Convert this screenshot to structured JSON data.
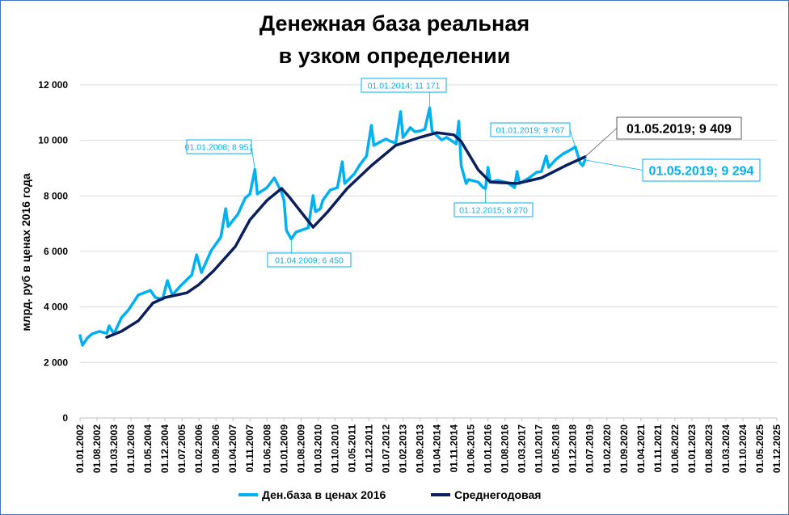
{
  "chart_data": {
    "type": "line",
    "title": [
      "Денежная база реальная",
      "в узком определении"
    ],
    "ylabel": "млрд. руб  в ценах 2016 года",
    "xlabel": "",
    "ylim": [
      0,
      12000
    ],
    "yticks": [
      0,
      2000,
      4000,
      6000,
      8000,
      10000,
      12000
    ],
    "ytick_labels": [
      "0",
      "2 000",
      "4 000",
      "6 000",
      "8 000",
      "10 000",
      "12 000"
    ],
    "xlim": [
      "2002-01",
      "2025-12"
    ],
    "xtick_labels": [
      "01.01.2002",
      "01.08.2002",
      "01.03.2003",
      "01.10.2003",
      "01.05.2004",
      "01.12.2004",
      "01.07.2005",
      "01.02.2006",
      "01.09.2006",
      "01.04.2007",
      "01.11.2007",
      "01.06.2008",
      "01.01.2009",
      "01.08.2009",
      "01.03.2010",
      "01.10.2010",
      "01.05.2011",
      "01.12.2011",
      "01.07.2012",
      "01.02.2013",
      "01.09.2013",
      "01.04.2014",
      "01.11.2014",
      "01.06.2015",
      "01.01.2016",
      "01.08.2016",
      "01.03.2017",
      "01.10.2017",
      "01.05.2018",
      "01.12.2018",
      "01.07.2019",
      "01.02.2020",
      "01.09.2020",
      "01.04.2021",
      "01.11.2021",
      "01.06.2022",
      "01.01.2023",
      "01.08.2023",
      "01.03.2024",
      "01.10.2024",
      "01.05.2025",
      "01.12.2025"
    ],
    "grid": "horizontal",
    "legend_position": "bottom",
    "series": [
      {
        "name": "Ден.база в ценах 2016",
        "color": "#00B0F0",
        "points": [
          [
            "2002-01",
            2970
          ],
          [
            "2002-02",
            2620
          ],
          [
            "2002-04",
            2880
          ],
          [
            "2002-06",
            3030
          ],
          [
            "2002-09",
            3120
          ],
          [
            "2002-12",
            3050
          ],
          [
            "2003-01",
            3320
          ],
          [
            "2003-03",
            3030
          ],
          [
            "2003-06",
            3610
          ],
          [
            "2003-09",
            3900
          ],
          [
            "2004-01",
            4430
          ],
          [
            "2004-06",
            4600
          ],
          [
            "2004-08",
            4340
          ],
          [
            "2004-11",
            4280
          ],
          [
            "2005-01",
            4950
          ],
          [
            "2005-03",
            4430
          ],
          [
            "2005-06",
            4720
          ],
          [
            "2005-10",
            5070
          ],
          [
            "2005-11",
            5150
          ],
          [
            "2006-01",
            5880
          ],
          [
            "2006-03",
            5240
          ],
          [
            "2006-07",
            6030
          ],
          [
            "2006-11",
            6520
          ],
          [
            "2007-01",
            7540
          ],
          [
            "2007-02",
            6900
          ],
          [
            "2007-06",
            7340
          ],
          [
            "2007-09",
            7920
          ],
          [
            "2007-11",
            8070
          ],
          [
            "2008-01",
            8951
          ],
          [
            "2008-02",
            8070
          ],
          [
            "2008-06",
            8300
          ],
          [
            "2008-09",
            8650
          ],
          [
            "2008-12",
            8130
          ],
          [
            "2009-01",
            7840
          ],
          [
            "2009-02",
            6760
          ],
          [
            "2009-04",
            6450
          ],
          [
            "2009-06",
            6700
          ],
          [
            "2009-10",
            6820
          ],
          [
            "2009-11",
            6850
          ],
          [
            "2010-01",
            8010
          ],
          [
            "2010-02",
            7430
          ],
          [
            "2010-04",
            7540
          ],
          [
            "2010-05",
            7840
          ],
          [
            "2010-08",
            8210
          ],
          [
            "2010-11",
            8300
          ],
          [
            "2011-01",
            9230
          ],
          [
            "2011-02",
            8450
          ],
          [
            "2011-06",
            8800
          ],
          [
            "2011-08",
            9090
          ],
          [
            "2011-11",
            9440
          ],
          [
            "2012-01",
            10540
          ],
          [
            "2012-02",
            9820
          ],
          [
            "2012-05",
            9960
          ],
          [
            "2012-07",
            10050
          ],
          [
            "2012-09",
            9960
          ],
          [
            "2012-11",
            9900
          ],
          [
            "2013-01",
            11040
          ],
          [
            "2013-02",
            10110
          ],
          [
            "2013-05",
            10460
          ],
          [
            "2013-07",
            10310
          ],
          [
            "2013-09",
            10340
          ],
          [
            "2013-11",
            10400
          ],
          [
            "2014-01",
            11171
          ],
          [
            "2014-02",
            10340
          ],
          [
            "2014-04",
            10170
          ],
          [
            "2014-06",
            10020
          ],
          [
            "2014-08",
            10110
          ],
          [
            "2014-12",
            9870
          ],
          [
            "2015-01",
            10690
          ],
          [
            "2015-02",
            9090
          ],
          [
            "2015-04",
            8450
          ],
          [
            "2015-05",
            8590
          ],
          [
            "2015-09",
            8500
          ],
          [
            "2015-11",
            8300
          ],
          [
            "2015-12",
            8270
          ],
          [
            "2016-01",
            9030
          ],
          [
            "2016-02",
            8500
          ],
          [
            "2016-05",
            8560
          ],
          [
            "2016-09",
            8480
          ],
          [
            "2016-12",
            8300
          ],
          [
            "2017-01",
            8880
          ],
          [
            "2017-02",
            8450
          ],
          [
            "2017-06",
            8650
          ],
          [
            "2017-09",
            8850
          ],
          [
            "2017-11",
            8880
          ],
          [
            "2018-01",
            9440
          ],
          [
            "2018-02",
            9030
          ],
          [
            "2018-05",
            9320
          ],
          [
            "2018-08",
            9520
          ],
          [
            "2018-10",
            9610
          ],
          [
            "2019-01",
            9767
          ],
          [
            "2019-03",
            9180
          ],
          [
            "2019-04",
            9090
          ],
          [
            "2019-05",
            9294
          ]
        ]
      },
      {
        "name": "Среднегодовая",
        "color": "#0A1F5C",
        "points": [
          [
            "2002-12",
            2910
          ],
          [
            "2003-06",
            3120
          ],
          [
            "2004-01",
            3500
          ],
          [
            "2004-07",
            4140
          ],
          [
            "2004-12",
            4340
          ],
          [
            "2005-09",
            4510
          ],
          [
            "2006-02",
            4810
          ],
          [
            "2006-08",
            5300
          ],
          [
            "2007-05",
            6180
          ],
          [
            "2007-11",
            7140
          ],
          [
            "2008-06",
            7840
          ],
          [
            "2008-12",
            8270
          ],
          [
            "2009-03",
            7980
          ],
          [
            "2010-01",
            6870
          ],
          [
            "2010-07",
            7430
          ],
          [
            "2011-03",
            8270
          ],
          [
            "2012-01",
            9090
          ],
          [
            "2012-11",
            9820
          ],
          [
            "2013-09",
            10110
          ],
          [
            "2014-04",
            10280
          ],
          [
            "2014-11",
            10200
          ],
          [
            "2015-02",
            9960
          ],
          [
            "2015-09",
            8940
          ],
          [
            "2016-02",
            8500
          ],
          [
            "2017-01",
            8450
          ],
          [
            "2017-11",
            8650
          ],
          [
            "2018-09",
            9090
          ],
          [
            "2019-05",
            9409
          ]
        ]
      }
    ],
    "annotations": [
      {
        "label": "01.01.2008; 8 951",
        "date": "2008-01",
        "value": 8951,
        "series": 0
      },
      {
        "label": "01.01.2014; 11 171",
        "date": "2014-01",
        "value": 11171,
        "series": 0
      },
      {
        "label": "01.04.2009; 6 450",
        "date": "2009-04",
        "value": 6450,
        "series": 0
      },
      {
        "label": "01.12.2015; 8 270",
        "date": "2015-12",
        "value": 8270,
        "series": 0
      },
      {
        "label": "01.01.2019; 9 767",
        "date": "2019-01",
        "value": 9767,
        "series": 0
      },
      {
        "label": "01.05.2019;  9 409",
        "date": "2019-05",
        "value": 9409,
        "series": 1
      },
      {
        "label": "01.05.2019; 9 294",
        "date": "2019-05",
        "value": 9294,
        "series": 0
      }
    ]
  }
}
